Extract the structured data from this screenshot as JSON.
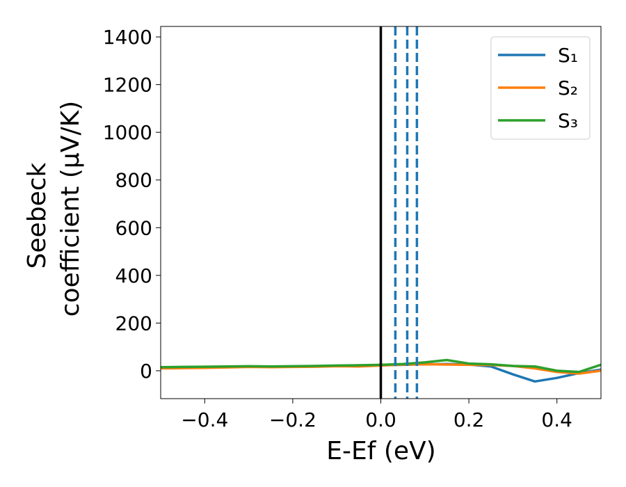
{
  "chart_data": {
    "type": "line",
    "x_label": "E-Ef (eV)",
    "y_label": [
      "Seebeck",
      "coefficient  (μV/K)"
    ],
    "x": [
      -0.5,
      -0.45,
      -0.4,
      -0.35,
      -0.3,
      -0.25,
      -0.2,
      -0.15,
      -0.1,
      -0.05,
      0,
      0.05,
      0.1,
      0.15,
      0.2,
      0.25,
      0.3,
      0.35,
      0.4,
      0.45,
      0.5
    ],
    "series": [
      {
        "name": "S₁",
        "color": "#1f77b4",
        "values": [
          12,
          13,
          14,
          15,
          17,
          16,
          17,
          18,
          20,
          21,
          23,
          25,
          27,
          28,
          26,
          18,
          -15,
          -45,
          -30,
          -10,
          5
        ]
      },
      {
        "name": "S₂",
        "color": "#ff7f0e",
        "values": [
          10,
          11,
          12,
          14,
          16,
          15,
          16,
          17,
          19,
          18,
          22,
          26,
          27,
          26,
          25,
          24,
          20,
          10,
          -5,
          -12,
          0
        ]
      },
      {
        "name": "S₃",
        "color": "#2ca02c",
        "values": [
          15,
          16,
          17,
          18,
          19,
          18,
          19,
          20,
          22,
          23,
          25,
          28,
          35,
          45,
          30,
          27,
          20,
          18,
          0,
          -5,
          25
        ]
      }
    ],
    "vlines": [
      {
        "x": 0,
        "color": "#000000",
        "style": "solid"
      },
      {
        "x": 0.033,
        "color": "#1f77b4",
        "style": "dashed"
      },
      {
        "x": 0.06,
        "color": "#1f77b4",
        "style": "dashed"
      },
      {
        "x": 0.082,
        "color": "#1f77b4",
        "style": "dashed"
      }
    ],
    "xlim": [
      -0.5,
      0.5
    ],
    "ylim": [
      -117,
      1444
    ],
    "xticks": [
      {
        "value": -0.4,
        "label": "−0.4"
      },
      {
        "value": -0.2,
        "label": "−0.2"
      },
      {
        "value": 0,
        "label": "0.0"
      },
      {
        "value": 0.2,
        "label": "0.2"
      },
      {
        "value": 0.4,
        "label": "0.4"
      }
    ],
    "yticks": [
      0,
      200,
      400,
      600,
      800,
      1000,
      1200,
      1400
    ],
    "legend": "upper right"
  }
}
